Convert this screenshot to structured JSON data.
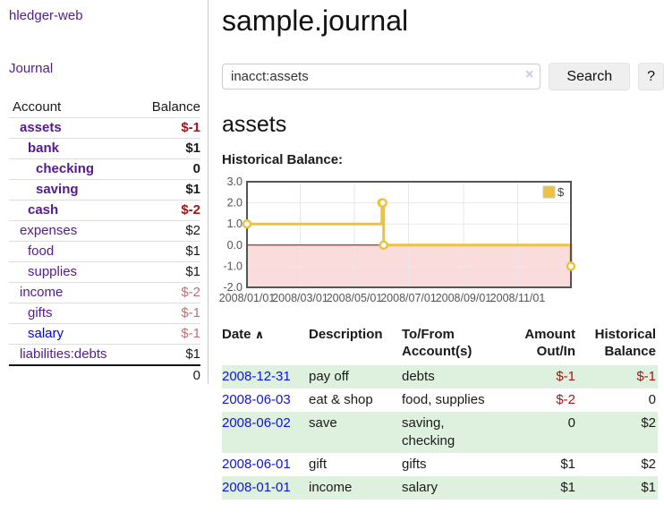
{
  "app_title": "hledger-web",
  "sidebar": {
    "journal_link": "Journal",
    "accounts_table": {
      "account_header": "Account",
      "balance_header": "Balance",
      "rows": [
        {
          "name": "assets",
          "balance": "$-1"
        },
        {
          "name": "bank",
          "balance": "$1"
        },
        {
          "name": "checking",
          "balance": "0"
        },
        {
          "name": "saving",
          "balance": "$1"
        },
        {
          "name": "cash",
          "balance": "$-2"
        },
        {
          "name": "expenses",
          "balance": "$2"
        },
        {
          "name": "food",
          "balance": "$1"
        },
        {
          "name": "supplies",
          "balance": "$1"
        },
        {
          "name": "income",
          "balance": "$-2"
        },
        {
          "name": "gifts",
          "balance": "$-1"
        },
        {
          "name": "salary",
          "balance": "$-1"
        },
        {
          "name": "liabilities:debts",
          "balance": "$1"
        }
      ],
      "total": "0"
    }
  },
  "header": {
    "title": "sample.journal"
  },
  "search": {
    "value": "inacct:assets",
    "clear_icon": "×",
    "search_button": "Search",
    "help_button": "?"
  },
  "content": {
    "account_heading": "assets",
    "chart_heading": "Historical Balance:"
  },
  "chart_data": {
    "type": "line",
    "style": "step-after with point markers",
    "title": "Historical Balance:",
    "series": [
      {
        "name": "$",
        "color": "#edc240",
        "points": [
          {
            "date": "2008-01-01",
            "day": 0,
            "value": 1
          },
          {
            "date": "2008-06-01",
            "day": 152,
            "value": 2
          },
          {
            "date": "2008-06-02",
            "day": 153,
            "value": 2
          },
          {
            "date": "2008-06-03",
            "day": 154,
            "value": 0
          },
          {
            "date": "2008-12-31",
            "day": 365,
            "value": -1
          }
        ]
      }
    ],
    "xlim": [
      0,
      365
    ],
    "ylim": [
      -2,
      3
    ],
    "x_ticks": [
      {
        "day": 0,
        "label": "2008/01/01"
      },
      {
        "day": 60,
        "label": "2008/03/01"
      },
      {
        "day": 121,
        "label": "2008/05/01"
      },
      {
        "day": 182,
        "label": "2008/07/01"
      },
      {
        "day": 244,
        "label": "2008/09/01"
      },
      {
        "day": 305,
        "label": "2008/11/01"
      }
    ],
    "y_ticks": [
      3.0,
      2.0,
      1.0,
      0.0,
      -1.0,
      -2.0
    ],
    "legend": {
      "label": "$",
      "position": "top-right"
    },
    "grid": true,
    "colors": {
      "negative_region": "#fadcdc",
      "zero_line": "#8b0000",
      "grid_line": "#e8e8e8",
      "border": "#545454",
      "tick_label": "#545454",
      "marker_fill": "#ffffff"
    }
  },
  "register": {
    "sort_icon": "∧",
    "headers": [
      "Date",
      "Description",
      "To/From\nAccount(s)",
      "Amount\nOut/In",
      "Historical\nBalance"
    ],
    "rows": [
      {
        "date": "2008-12-31",
        "description": "pay off",
        "accounts": "debts",
        "amount": "$-1",
        "balance": "$-1"
      },
      {
        "date": "2008-06-03",
        "description": "eat & shop",
        "accounts": "food, supplies",
        "amount": "$-2",
        "balance": "0"
      },
      {
        "date": "2008-06-02",
        "description": "save",
        "accounts": "saving,\nchecking",
        "amount": "0",
        "balance": "$2"
      },
      {
        "date": "2008-06-01",
        "description": "gift",
        "accounts": "gifts",
        "amount": "$1",
        "balance": "$2"
      },
      {
        "date": "2008-01-01",
        "description": "income",
        "accounts": "salary",
        "amount": "$1",
        "balance": "$1"
      }
    ]
  },
  "colors": {
    "link_purple": "#551a8b",
    "link_blue": "#0f12dd",
    "negative_strong": "#a01515",
    "negative_soft": "#bd7070",
    "row_stripe_green": "#def0de",
    "series_gold": "#edc240",
    "button_bg": "#efefef"
  }
}
